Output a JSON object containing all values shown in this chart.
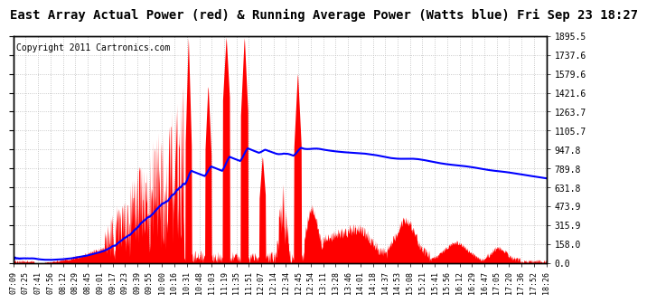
{
  "title": "East Array Actual Power (red) & Running Average Power (Watts blue) Fri Sep 23 18:27",
  "copyright": "Copyright 2011 Cartronics.com",
  "ylabel_right": [
    "0.0",
    "158.0",
    "315.9",
    "473.9",
    "631.8",
    "789.8",
    "947.8",
    "1105.7",
    "1263.7",
    "1421.6",
    "1579.6",
    "1737.6",
    "1895.5"
  ],
  "ymax": 1895.5,
  "ymin": 0.0,
  "fill_color": "red",
  "avg_color": "blue",
  "background": "white",
  "grid_color": "#aaaaaa",
  "title_fontsize": 10,
  "copyright_fontsize": 7,
  "tick_labels": [
    "07:09",
    "07:25",
    "07:41",
    "07:56",
    "08:12",
    "08:29",
    "08:45",
    "09:01",
    "09:17",
    "09:23",
    "09:39",
    "09:55",
    "10:00",
    "10:16",
    "10:31",
    "10:48",
    "11:03",
    "11:19",
    "11:35",
    "11:51",
    "12:07",
    "12:14",
    "12:34",
    "12:45",
    "12:54",
    "13:11",
    "13:28",
    "13:46",
    "14:01",
    "14:18",
    "14:37",
    "14:53",
    "15:08",
    "15:21",
    "15:41",
    "15:56",
    "16:12",
    "16:29",
    "16:47",
    "17:05",
    "17:20",
    "17:36",
    "17:52",
    "18:26"
  ]
}
